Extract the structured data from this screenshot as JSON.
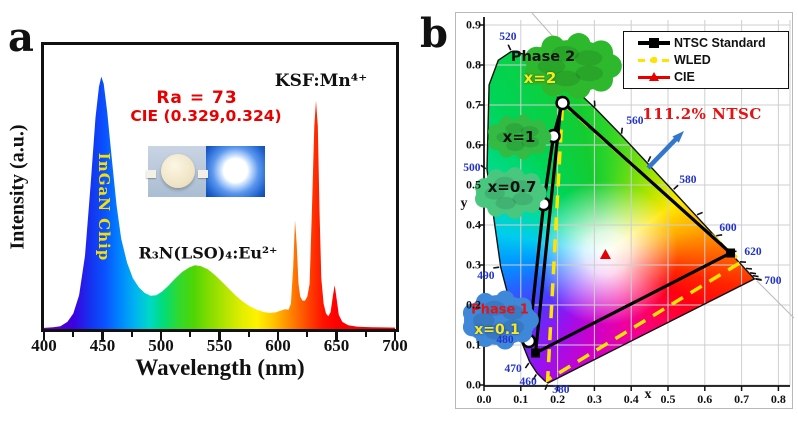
{
  "chart_data": [
    {
      "id": "a",
      "type": "area",
      "panel_label": "a",
      "xlabel": "Wavelength (nm)",
      "ylabel": "Intensity (a.u.)",
      "xlim": [
        400,
        700
      ],
      "ylim": [
        0,
        1
      ],
      "x_ticks": [
        400,
        450,
        500,
        550,
        600,
        650,
        700
      ],
      "x_minor_ticks": [
        425,
        475,
        525,
        575,
        625,
        675
      ],
      "annotations": {
        "ra": "Ra = 73",
        "cie": "CIE (0.329,0.324)",
        "ksf": "KSF:Mn⁴⁺",
        "chip": "InGaN Chip",
        "phosphor": "R₃N(LSO)₄:Eu²⁺"
      },
      "series": [
        {
          "name": "WLED emission spectrum",
          "points": [
            [
              400,
              0.004
            ],
            [
              408,
              0.006
            ],
            [
              414,
              0.01
            ],
            [
              420,
              0.025
            ],
            [
              425,
              0.055
            ],
            [
              430,
              0.12
            ],
            [
              435,
              0.26
            ],
            [
              440,
              0.52
            ],
            [
              444,
              0.75
            ],
            [
              447,
              0.86
            ],
            [
              449,
              0.895
            ],
            [
              451,
              0.87
            ],
            [
              454,
              0.77
            ],
            [
              458,
              0.6
            ],
            [
              462,
              0.44
            ],
            [
              466,
              0.32
            ],
            [
              471,
              0.235
            ],
            [
              476,
              0.18
            ],
            [
              481,
              0.148
            ],
            [
              486,
              0.128
            ],
            [
              491,
              0.118
            ],
            [
              496,
              0.12
            ],
            [
              501,
              0.133
            ],
            [
              506,
              0.152
            ],
            [
              512,
              0.178
            ],
            [
              518,
              0.202
            ],
            [
              524,
              0.218
            ],
            [
              529,
              0.226
            ],
            [
              534,
              0.223
            ],
            [
              540,
              0.212
            ],
            [
              546,
              0.192
            ],
            [
              552,
              0.168
            ],
            [
              558,
              0.143
            ],
            [
              564,
              0.118
            ],
            [
              570,
              0.097
            ],
            [
              576,
              0.08
            ],
            [
              582,
              0.068
            ],
            [
              588,
              0.06
            ],
            [
              593,
              0.057
            ],
            [
              598,
              0.059
            ],
            [
              603,
              0.066
            ],
            [
              606,
              0.07
            ],
            [
              609,
              0.068
            ],
            [
              611,
              0.09
            ],
            [
              613,
              0.22
            ],
            [
              614.5,
              0.385
            ],
            [
              616,
              0.3
            ],
            [
              617.5,
              0.16
            ],
            [
              619,
              0.115
            ],
            [
              621,
              0.1
            ],
            [
              623,
              0.1
            ],
            [
              625,
              0.115
            ],
            [
              627,
              0.16
            ],
            [
              629,
              0.42
            ],
            [
              631,
              0.72
            ],
            [
              632.5,
              0.81
            ],
            [
              634,
              0.72
            ],
            [
              635.5,
              0.42
            ],
            [
              637,
              0.18
            ],
            [
              639,
              0.09
            ],
            [
              641,
              0.055
            ],
            [
              643,
              0.045
            ],
            [
              645,
              0.06
            ],
            [
              647,
              0.12
            ],
            [
              648.5,
              0.155
            ],
            [
              650,
              0.11
            ],
            [
              652,
              0.05
            ],
            [
              655,
              0.025
            ],
            [
              660,
              0.013
            ],
            [
              668,
              0.008
            ],
            [
              680,
              0.006
            ],
            [
              700,
              0.005
            ]
          ]
        }
      ],
      "spectrum_gradient": [
        [
          400,
          "#6a00b8"
        ],
        [
          425,
          "#3c00e0"
        ],
        [
          440,
          "#1533f0"
        ],
        [
          452,
          "#0a52ff"
        ],
        [
          465,
          "#0086ff"
        ],
        [
          478,
          "#00b4f0"
        ],
        [
          490,
          "#00d8c8"
        ],
        [
          502,
          "#00dc7a"
        ],
        [
          515,
          "#30d930"
        ],
        [
          528,
          "#4fd505"
        ],
        [
          540,
          "#7fdc00"
        ],
        [
          555,
          "#b4e400"
        ],
        [
          570,
          "#e4ee00"
        ],
        [
          582,
          "#fff200"
        ],
        [
          595,
          "#ffc800"
        ],
        [
          607,
          "#ff9400"
        ],
        [
          617,
          "#ff6a00"
        ],
        [
          628,
          "#ff3c00"
        ],
        [
          638,
          "#ff1400"
        ],
        [
          650,
          "#ff0000"
        ],
        [
          700,
          "#f40000"
        ]
      ]
    },
    {
      "id": "b",
      "type": "scatter",
      "panel_label": "b",
      "xlabel": "x",
      "ylabel": "y",
      "xlim": [
        0,
        0.8
      ],
      "ylim": [
        0,
        0.9
      ],
      "x_ticks": [
        0,
        0.1,
        0.2,
        0.3,
        0.4,
        0.5,
        0.6,
        0.7,
        0.8
      ],
      "y_ticks": [
        0,
        0.1,
        0.2,
        0.3,
        0.4,
        0.5,
        0.6,
        0.7,
        0.8,
        0.9
      ],
      "legend": [
        {
          "label": "NTSC Standard",
          "color": "#000000",
          "style": "solid-square"
        },
        {
          "label": "WLED",
          "color": "#ffe400",
          "style": "dashed-dot"
        },
        {
          "label": "CIE",
          "color": "#e80000",
          "style": "solid-triangle"
        }
      ],
      "gamut_note": "111.2% NTSC",
      "locus": [
        {
          "wl": 380,
          "x": 0.1741,
          "y": 0.005,
          "tick": true
        },
        {
          "wl": 440,
          "x": 0.1644,
          "y": 0.0109
        },
        {
          "wl": 460,
          "x": 0.144,
          "y": 0.0297,
          "tick": true
        },
        {
          "wl": 470,
          "x": 0.1241,
          "y": 0.0578,
          "tick": true
        },
        {
          "wl": 480,
          "x": 0.0913,
          "y": 0.1327,
          "tick": true
        },
        {
          "wl": 490,
          "x": 0.0454,
          "y": 0.295,
          "tick": true
        },
        {
          "wl": 500,
          "x": 0.0082,
          "y": 0.5384,
          "tick": true
        },
        {
          "wl": 510,
          "x": 0.0139,
          "y": 0.7502
        },
        {
          "wl": 515,
          "x": 0.0389,
          "y": 0.812
        },
        {
          "wl": 520,
          "x": 0.0743,
          "y": 0.8338,
          "tick": true
        },
        {
          "wl": 525,
          "x": 0.1142,
          "y": 0.8262
        },
        {
          "wl": 530,
          "x": 0.1547,
          "y": 0.8059
        },
        {
          "wl": 540,
          "x": 0.2296,
          "y": 0.7543,
          "tick": true
        },
        {
          "wl": 550,
          "x": 0.3016,
          "y": 0.6923,
          "tick": true
        },
        {
          "wl": 560,
          "x": 0.3731,
          "y": 0.6245,
          "tick": true
        },
        {
          "wl": 570,
          "x": 0.4441,
          "y": 0.5547,
          "tick": true
        },
        {
          "wl": 580,
          "x": 0.5125,
          "y": 0.4866,
          "tick": true
        },
        {
          "wl": 590,
          "x": 0.5752,
          "y": 0.4242,
          "tick": true
        },
        {
          "wl": 600,
          "x": 0.627,
          "y": 0.3725,
          "tick": true
        },
        {
          "wl": 610,
          "x": 0.6658,
          "y": 0.334,
          "tick": true
        },
        {
          "wl": 620,
          "x": 0.6915,
          "y": 0.3083,
          "tick": true
        },
        {
          "wl": 630,
          "x": 0.7079,
          "y": 0.292,
          "tick": true
        },
        {
          "wl": 640,
          "x": 0.719,
          "y": 0.2809,
          "tick": true
        },
        {
          "wl": 650,
          "x": 0.726,
          "y": 0.274,
          "tick": true
        },
        {
          "wl": 680,
          "x": 0.7334,
          "y": 0.2666,
          "tick": true
        },
        {
          "wl": 700,
          "x": 0.7347,
          "y": 0.2653,
          "tick": true
        }
      ],
      "locus_labels": [
        {
          "text": "520",
          "x": 0.065,
          "y": 0.87
        },
        {
          "text": "560",
          "x": 0.41,
          "y": 0.66
        },
        {
          "text": "580",
          "x": 0.554,
          "y": 0.5125
        },
        {
          "text": "600",
          "x": 0.663,
          "y": 0.3925
        },
        {
          "text": "620",
          "x": 0.731,
          "y": 0.3325
        },
        {
          "text": "700",
          "x": 0.785,
          "y": 0.26
        },
        {
          "text": "500",
          "x": -0.033,
          "y": 0.5425
        },
        {
          "text": "490",
          "x": 0.005,
          "y": 0.2725
        },
        {
          "text": "480",
          "x": 0.057,
          "y": 0.1125
        },
        {
          "text": "470",
          "x": 0.079,
          "y": 0.04
        },
        {
          "text": "460",
          "x": 0.12,
          "y": 0.0075
        },
        {
          "text": "380",
          "x": 0.209,
          "y": -0.012
        }
      ],
      "ntsc_triangle": [
        [
          0.21,
          0.71
        ],
        [
          0.67,
          0.33
        ],
        [
          0.14,
          0.08
        ]
      ],
      "wled_triangle": [
        [
          0.2135,
          0.705
        ],
        [
          0.7,
          0.308
        ],
        [
          0.173,
          0.013
        ]
      ],
      "phase_points": [
        {
          "x": 0.2135,
          "y": 0.705,
          "label": "x=2"
        },
        {
          "x": 0.189,
          "y": 0.6225,
          "label": "x=1"
        },
        {
          "x": 0.162,
          "y": 0.4525,
          "label": "x=0.7"
        },
        {
          "x": 0.122,
          "y": 0.11,
          "label": "x=0.1"
        }
      ],
      "cie_point": {
        "x": 0.33,
        "y": 0.325
      },
      "blobs": [
        {
          "name": "phase-2",
          "lines": [
            "Phase 2",
            "x=2"
          ],
          "fill": "#2eb82e",
          "cx": 0.2395,
          "cy": 0.7975,
          "rx": 46,
          "ry": 26
        },
        {
          "name": "x-1",
          "lines": [
            "x=1"
          ],
          "fill": "#33bb44",
          "cx": 0.0951,
          "cy": 0.62,
          "rx": 30,
          "ry": 18
        },
        {
          "name": "x-0.7",
          "lines": [
            "x=0.7"
          ],
          "fill": "#49c77e",
          "cx": 0.0707,
          "cy": 0.48,
          "rx": 34,
          "ry": 21
        },
        {
          "name": "phase-1",
          "lines": [
            "Phase 1",
            "x=0.1"
          ],
          "fill": "#3f87d8",
          "cx": 0.0435,
          "cy": 0.1625,
          "rx": 36,
          "ry": 25
        }
      ]
    }
  ]
}
